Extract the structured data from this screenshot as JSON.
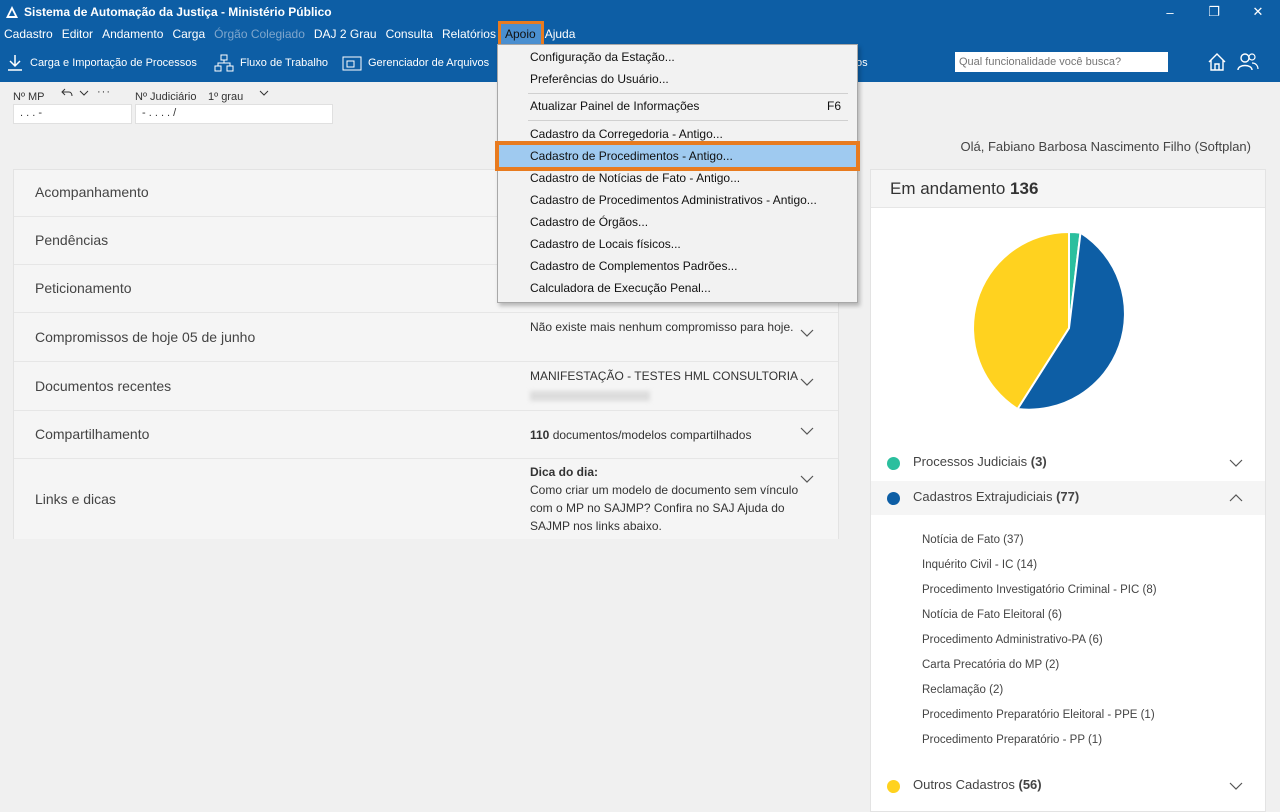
{
  "window": {
    "title": "Sistema de Automação da Justiça - Ministério Público",
    "controls": [
      "–",
      "❐",
      "✕"
    ]
  },
  "menubar": {
    "items": [
      "Cadastro",
      "Editor",
      "Andamento",
      "Carga",
      "Órgão Colegiado",
      "DAJ 2 Grau",
      "Consulta",
      "Relatórios",
      "Apoio",
      "Ajuda"
    ]
  },
  "toolbar": {
    "carga_label": "Carga e Importação de Processos",
    "fluxo_label": "Fluxo de Trabalho",
    "gerenciador_label": "Gerenciador de Arquivos",
    "partial_label": "os",
    "search_placeholder": "Qual funcionalidade você busca?"
  },
  "fields": {
    "mp_label": "Nº MP",
    "mp_value": ". .  .        -",
    "judiciario_label": "Nº Judiciário",
    "grau_label": "1º grau",
    "judiciario_value": "-  .  .  .  .    /"
  },
  "greeting": "Olá, Fabiano Barbosa Nascimento Filho (Softplan)",
  "left_panel": {
    "rows": [
      {
        "title": "Acompanhamento"
      },
      {
        "title": "Pendências"
      },
      {
        "title": "Peticionamento"
      },
      {
        "title": "Compromissos de hoje 05 de junho",
        "content": "Não existe mais nenhum compromisso para hoje."
      },
      {
        "title": "Documentos recentes",
        "content": "MANIFESTAÇÃO - TESTES HML CONSULTORIA"
      },
      {
        "title": "Compartilhamento",
        "count": "110",
        "content": " documentos/modelos compartilhados"
      },
      {
        "title": "Links e dicas",
        "tip_title": "Dica do dia:",
        "content": "Como criar um modelo de documento sem vínculo com o MP no SAJMP? Confira no SAJ Ajuda do SAJMP nos links abaixo."
      }
    ]
  },
  "right_panel": {
    "heading": "Em andamento",
    "total": "136",
    "legend": [
      {
        "label": "Processos Judiciais",
        "count": "(3)",
        "color": "#2bbf9e"
      },
      {
        "label": "Cadastros Extrajudiciais",
        "count": "(77)",
        "color": "#0d5ea5"
      },
      {
        "label": "Outros Cadastros",
        "count": "(56)",
        "color": "#ffd21f"
      }
    ],
    "sub_items": [
      "Notícia de Fato (37)",
      "Inquérito Civil - IC (14)",
      "Procedimento Investigatório Criminal - PIC (8)",
      "Notícia de Fato Eleitoral (6)",
      "Procedimento Administrativo-PA (6)",
      "Carta Precatória do MP (2)",
      "Reclamação (2)",
      "Procedimento Preparatório Eleitoral - PPE (1)",
      "Procedimento Preparatório - PP (1)"
    ]
  },
  "dropdown": {
    "items": [
      {
        "label": "Configuração da Estação..."
      },
      {
        "label": "Preferências do Usuário..."
      },
      {
        "label": "Atualizar Painel de Informações",
        "shortcut": "F6"
      },
      {
        "label": "Cadastro da Corregedoria - Antigo..."
      },
      {
        "label": "Cadastro de Procedimentos - Antigo..."
      },
      {
        "label": "Cadastro de Notícias de Fato - Antigo..."
      },
      {
        "label": "Cadastro de Procedimentos Administrativos - Antigo..."
      },
      {
        "label": "Cadastro de Órgãos..."
      },
      {
        "label": "Cadastro de Locais físicos..."
      },
      {
        "label": "Cadastro de Complementos Padrões..."
      },
      {
        "label": "Calculadora de Execução Penal..."
      }
    ]
  }
}
